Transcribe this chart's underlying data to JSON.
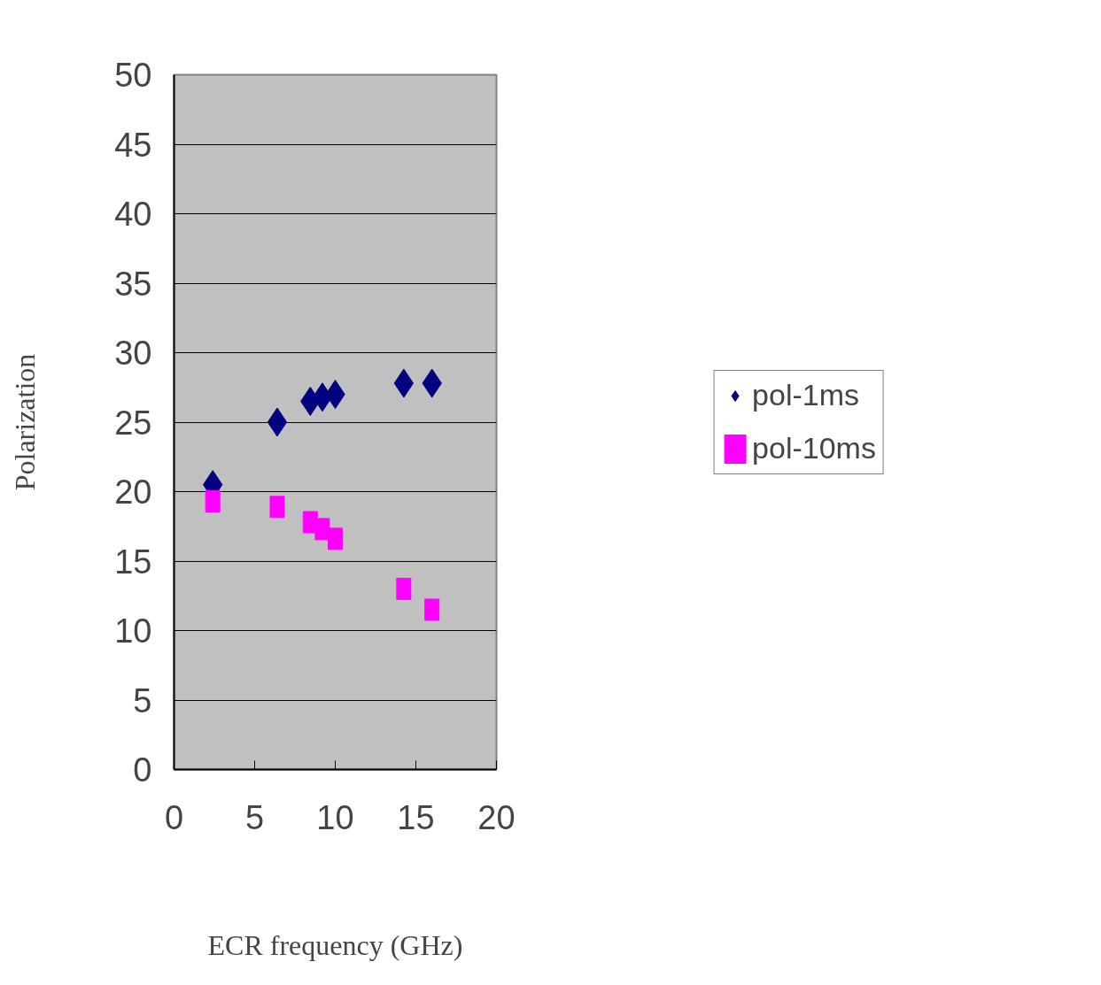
{
  "chart_data": {
    "type": "scatter",
    "xlabel": "ECR frequency (GHz)",
    "ylabel": "Polarization",
    "x": [
      2.4,
      6.4,
      8.45,
      9.2,
      10,
      14.25,
      16
    ],
    "series": [
      {
        "name": "pol-1ms",
        "color": "#000080",
        "marker": "diamond",
        "values": [
          20.5,
          25.0,
          26.5,
          26.8,
          27.0,
          27.8,
          27.8
        ]
      },
      {
        "name": "pol-10ms",
        "color": "#ff00ff",
        "marker": "square",
        "values": [
          19.3,
          18.9,
          17.8,
          17.3,
          16.6,
          13.0,
          11.5
        ]
      }
    ],
    "xlim": [
      0,
      20
    ],
    "xticks": [
      0,
      5,
      10,
      15,
      20
    ],
    "ylim": [
      0,
      50
    ],
    "yticks": [
      0,
      5,
      10,
      15,
      20,
      25,
      30,
      35,
      40,
      45,
      50
    ],
    "grid": "y",
    "legend": "right"
  }
}
